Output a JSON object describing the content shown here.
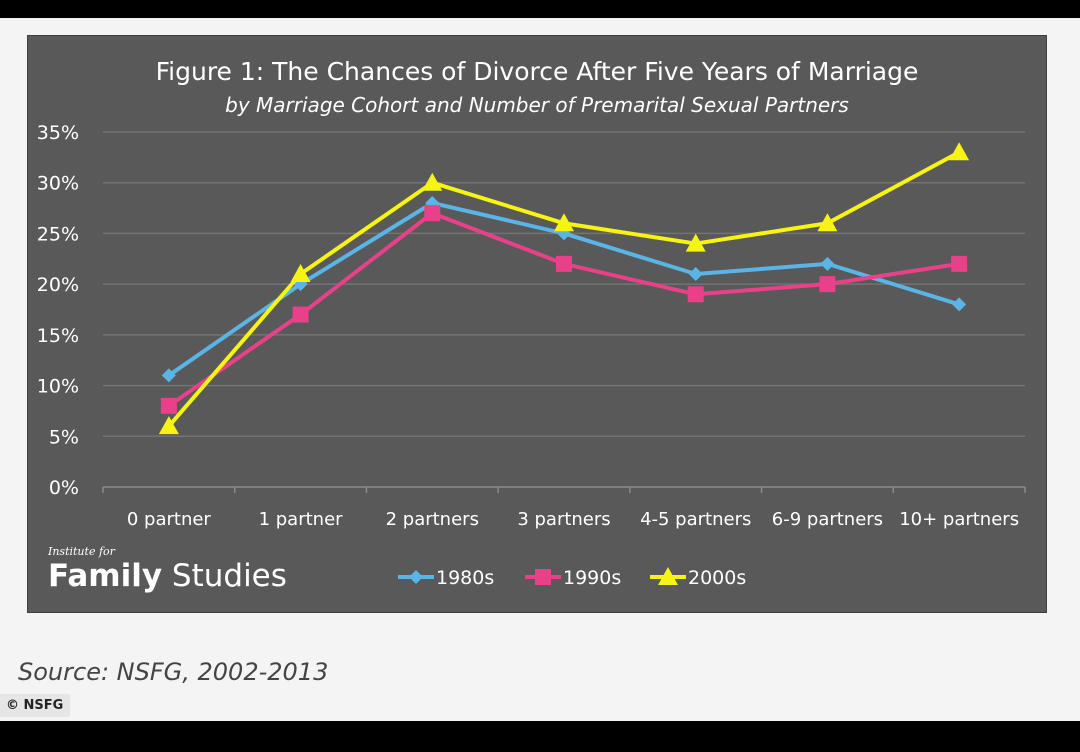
{
  "chart_data": {
    "type": "line",
    "title": "Figure 1: The Chances of Divorce After Five Years of Marriage",
    "subtitle": "by Marriage Cohort and Number of Premarital Sexual Partners",
    "categories": [
      "0 partner",
      "1 partner",
      "2 partners",
      "3 partners",
      "4-5 partners",
      "6-9 partners",
      "10+ partners"
    ],
    "ylim": [
      0,
      35
    ],
    "yticks": [
      0,
      5,
      10,
      15,
      20,
      25,
      30,
      35
    ],
    "ytick_labels": [
      "0%",
      "5%",
      "10%",
      "15%",
      "20%",
      "25%",
      "30%",
      "35%"
    ],
    "grid": true,
    "legend_position": "bottom-center",
    "series": [
      {
        "name": "1980s",
        "color": "#5ab4e5",
        "marker": "diamond",
        "values": [
          11,
          20,
          28,
          25,
          21,
          22,
          18
        ]
      },
      {
        "name": "1990s",
        "color": "#e8418a",
        "marker": "square",
        "values": [
          8,
          17,
          27,
          22,
          19,
          20,
          22
        ]
      },
      {
        "name": "2000s",
        "color": "#f7f312",
        "marker": "triangle",
        "values": [
          6,
          21,
          30,
          26,
          24,
          26,
          33
        ]
      }
    ]
  },
  "logo": {
    "small": "Institute for",
    "word1": "Family",
    "word2": "Studies"
  },
  "source": "Source: NSFG, 2002-2013",
  "credit": "© NSFG"
}
